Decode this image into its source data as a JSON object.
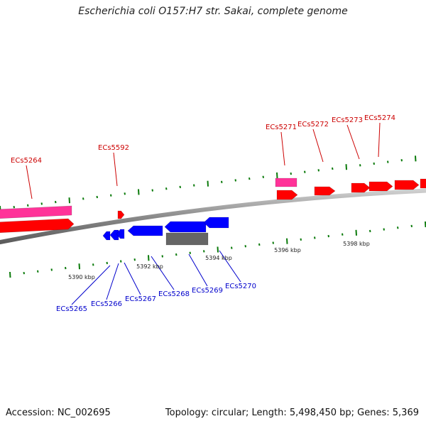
{
  "title": "Escherichia coli O157:H7 str. Sakai, complete genome",
  "footer": {
    "accession": "Accession: NC_002695",
    "info": "Topology: circular; Length: 5,498,450 bp; Genes: 5,369"
  },
  "colors": {
    "forward": "#ff0000",
    "forward_pseudo": "#ff3399",
    "reverse": "#0000ff",
    "other": "#666666",
    "backbone": "#888888",
    "ticks": "#0a7a0a",
    "forward_label": "#cc0000",
    "reverse_label": "#0000cc"
  },
  "scale": {
    "labels": [
      "5390 kbp",
      "5392 kbp",
      "5394 kbp",
      "5396 kbp",
      "5398 kbp"
    ]
  },
  "genes_forward": [
    "ECs5264",
    "ECs5592",
    "ECs5271",
    "ECs5272",
    "ECs5273",
    "ECs5274"
  ],
  "genes_reverse": [
    "ECs5265",
    "ECs5266",
    "ECs5267",
    "ECs5268",
    "ECs5269",
    "ECs5270"
  ]
}
